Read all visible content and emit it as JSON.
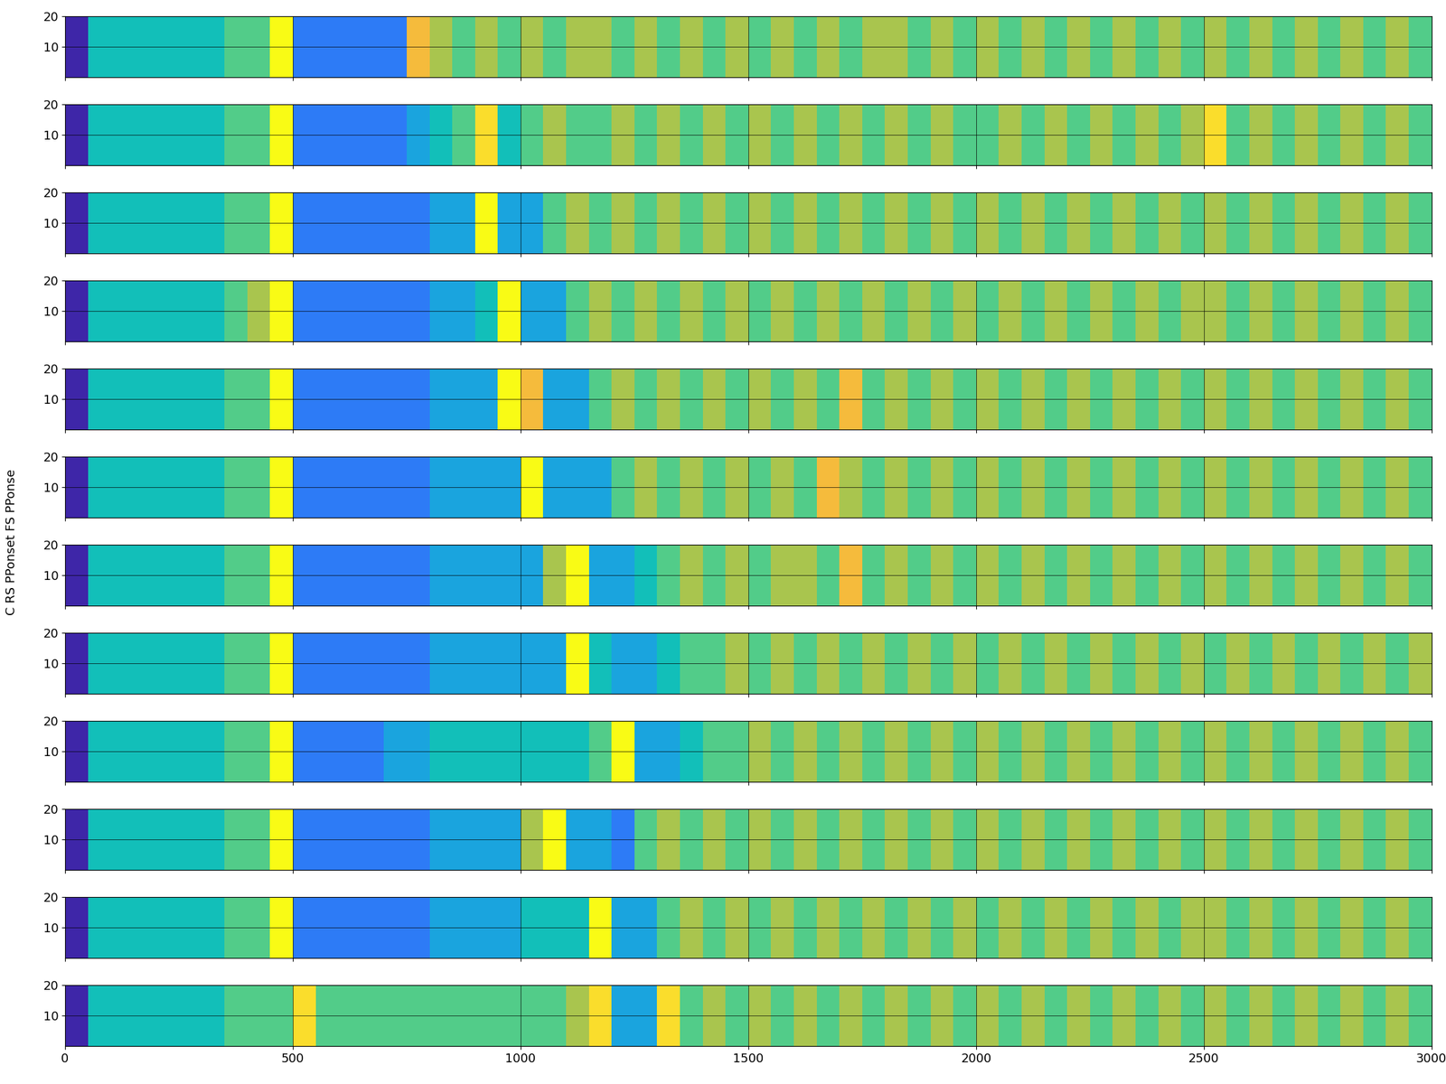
{
  "ylabel": "C RS PPonset FS PPonse",
  "chart_data": [
    {
      "type": "heatmap",
      "xlim": [
        0,
        3000
      ],
      "ylim": [
        0,
        20
      ],
      "xticks": [
        0,
        500,
        1000,
        1500,
        2000,
        2500,
        3000
      ],
      "yticks": [
        10,
        20
      ],
      "grid": true,
      "tick_labels": "y",
      "clim": [
        0,
        9
      ],
      "cells": [
        [
          0,
          4,
          4,
          4,
          4,
          4,
          4,
          5,
          5,
          9,
          2,
          2,
          2,
          2,
          2,
          7,
          6,
          5,
          6,
          5,
          6,
          5,
          6,
          6,
          5,
          6,
          5,
          6,
          5,
          6,
          5,
          6,
          5,
          6,
          5,
          6,
          6,
          5,
          6,
          5,
          6,
          5,
          6,
          5,
          6,
          5,
          6,
          5,
          6,
          5,
          6,
          5,
          6,
          5,
          6,
          5,
          6,
          5,
          6,
          5
        ]
      ]
    },
    {
      "type": "heatmap",
      "xlim": [
        0,
        3000
      ],
      "ylim": [
        0,
        20
      ],
      "xticks": [
        0,
        500,
        1000,
        1500,
        2000,
        2500,
        3000
      ],
      "yticks": [
        10,
        20
      ],
      "grid": true,
      "tick_labels": "y",
      "clim": [
        0,
        9
      ],
      "cells": [
        [
          0,
          4,
          4,
          4,
          4,
          4,
          4,
          5,
          5,
          9,
          2,
          2,
          2,
          2,
          2,
          3,
          4,
          5,
          8,
          4,
          5,
          6,
          5,
          5,
          6,
          5,
          6,
          5,
          6,
          5,
          6,
          5,
          6,
          5,
          6,
          5,
          6,
          5,
          6,
          5,
          5,
          6,
          5,
          6,
          5,
          6,
          5,
          6,
          5,
          6,
          8,
          5,
          6,
          5,
          6,
          5,
          6,
          5,
          6,
          5
        ]
      ]
    },
    {
      "type": "heatmap",
      "xlim": [
        0,
        3000
      ],
      "ylim": [
        0,
        20
      ],
      "xticks": [
        0,
        500,
        1000,
        1500,
        2000,
        2500,
        3000
      ],
      "yticks": [
        10,
        20
      ],
      "grid": true,
      "tick_labels": "y",
      "clim": [
        0,
        9
      ],
      "cells": [
        [
          0,
          4,
          4,
          4,
          4,
          4,
          4,
          5,
          5,
          9,
          2,
          2,
          2,
          2,
          2,
          2,
          3,
          3,
          9,
          3,
          3,
          5,
          6,
          5,
          6,
          5,
          6,
          5,
          6,
          5,
          6,
          5,
          6,
          5,
          6,
          5,
          6,
          5,
          6,
          5,
          6,
          5,
          6,
          5,
          6,
          5,
          6,
          5,
          6,
          5,
          6,
          5,
          6,
          5,
          6,
          5,
          6,
          5,
          6,
          5
        ]
      ]
    },
    {
      "type": "heatmap",
      "xlim": [
        0,
        3000
      ],
      "ylim": [
        0,
        20
      ],
      "xticks": [
        0,
        500,
        1000,
        1500,
        2000,
        2500,
        3000
      ],
      "yticks": [
        10,
        20
      ],
      "grid": true,
      "tick_labels": "y",
      "clim": [
        0,
        9
      ],
      "cells": [
        [
          0,
          4,
          4,
          4,
          4,
          4,
          4,
          5,
          6,
          9,
          2,
          2,
          2,
          2,
          2,
          2,
          3,
          3,
          4,
          9,
          3,
          3,
          5,
          6,
          5,
          6,
          5,
          6,
          5,
          6,
          5,
          6,
          5,
          6,
          5,
          6,
          5,
          6,
          5,
          6,
          5,
          6,
          5,
          6,
          5,
          6,
          5,
          6,
          5,
          6,
          6,
          5,
          6,
          5,
          6,
          5,
          6,
          5,
          6,
          5
        ]
      ]
    },
    {
      "type": "heatmap",
      "xlim": [
        0,
        3000
      ],
      "ylim": [
        0,
        20
      ],
      "xticks": [
        0,
        500,
        1000,
        1500,
        2000,
        2500,
        3000
      ],
      "yticks": [
        10,
        20
      ],
      "grid": true,
      "tick_labels": "y",
      "clim": [
        0,
        9
      ],
      "cells": [
        [
          0,
          4,
          4,
          4,
          4,
          4,
          4,
          5,
          5,
          9,
          2,
          2,
          2,
          2,
          2,
          2,
          3,
          3,
          3,
          9,
          7,
          3,
          3,
          5,
          6,
          5,
          6,
          5,
          6,
          5,
          6,
          5,
          6,
          5,
          7,
          5,
          6,
          5,
          6,
          5,
          6,
          5,
          6,
          5,
          6,
          5,
          6,
          5,
          6,
          5,
          6,
          5,
          6,
          5,
          6,
          5,
          6,
          5,
          6,
          5
        ]
      ]
    },
    {
      "type": "heatmap",
      "xlim": [
        0,
        3000
      ],
      "ylim": [
        0,
        20
      ],
      "xticks": [
        0,
        500,
        1000,
        1500,
        2000,
        2500,
        3000
      ],
      "yticks": [
        10,
        20
      ],
      "grid": true,
      "tick_labels": "y",
      "clim": [
        0,
        9
      ],
      "cells": [
        [
          0,
          4,
          4,
          4,
          4,
          4,
          4,
          5,
          5,
          9,
          2,
          2,
          2,
          2,
          2,
          2,
          3,
          3,
          3,
          3,
          9,
          3,
          3,
          3,
          5,
          6,
          5,
          6,
          5,
          6,
          5,
          6,
          5,
          7,
          6,
          5,
          6,
          5,
          6,
          5,
          6,
          5,
          6,
          5,
          6,
          5,
          6,
          5,
          6,
          5,
          6,
          5,
          6,
          5,
          6,
          5,
          6,
          5,
          6,
          5
        ]
      ]
    },
    {
      "type": "heatmap",
      "xlim": [
        0,
        3000
      ],
      "ylim": [
        0,
        20
      ],
      "xticks": [
        0,
        500,
        1000,
        1500,
        2000,
        2500,
        3000
      ],
      "yticks": [
        10,
        20
      ],
      "grid": true,
      "tick_labels": "y",
      "clim": [
        0,
        9
      ],
      "cells": [
        [
          0,
          4,
          4,
          4,
          4,
          4,
          4,
          5,
          5,
          9,
          2,
          2,
          2,
          2,
          2,
          2,
          3,
          3,
          3,
          3,
          3,
          6,
          9,
          3,
          3,
          4,
          5,
          6,
          5,
          6,
          5,
          6,
          6,
          5,
          7,
          5,
          6,
          5,
          6,
          5,
          6,
          5,
          6,
          5,
          6,
          5,
          6,
          5,
          6,
          5,
          6,
          5,
          6,
          5,
          6,
          5,
          6,
          5,
          6,
          5
        ]
      ]
    },
    {
      "type": "heatmap",
      "xlim": [
        0,
        3000
      ],
      "ylim": [
        0,
        20
      ],
      "xticks": [
        0,
        500,
        1000,
        1500,
        2000,
        2500,
        3000
      ],
      "yticks": [
        10,
        20
      ],
      "grid": true,
      "tick_labels": "y",
      "clim": [
        0,
        9
      ],
      "cells": [
        [
          0,
          4,
          4,
          4,
          4,
          4,
          4,
          5,
          5,
          9,
          2,
          2,
          2,
          2,
          2,
          2,
          3,
          3,
          3,
          3,
          3,
          3,
          9,
          4,
          3,
          3,
          4,
          5,
          5,
          6,
          5,
          6,
          5,
          6,
          5,
          6,
          5,
          6,
          5,
          6,
          5,
          6,
          5,
          6,
          5,
          6,
          5,
          6,
          5,
          6,
          5,
          6,
          5,
          6,
          5,
          6,
          5,
          6,
          5,
          6
        ]
      ]
    },
    {
      "type": "heatmap",
      "xlim": [
        0,
        3000
      ],
      "ylim": [
        0,
        20
      ],
      "xticks": [
        0,
        500,
        1000,
        1500,
        2000,
        2500,
        3000
      ],
      "yticks": [
        10,
        20
      ],
      "grid": true,
      "tick_labels": "y",
      "clim": [
        0,
        9
      ],
      "cells": [
        [
          0,
          4,
          4,
          4,
          4,
          4,
          4,
          5,
          5,
          9,
          2,
          2,
          2,
          2,
          3,
          3,
          4,
          4,
          4,
          4,
          4,
          4,
          4,
          5,
          9,
          3,
          3,
          4,
          5,
          5,
          6,
          5,
          6,
          5,
          6,
          5,
          6,
          5,
          6,
          5,
          6,
          5,
          6,
          5,
          6,
          5,
          6,
          5,
          6,
          5,
          6,
          5,
          6,
          5,
          6,
          5,
          6,
          5,
          6,
          5
        ]
      ]
    },
    {
      "type": "heatmap",
      "xlim": [
        0,
        3000
      ],
      "ylim": [
        0,
        20
      ],
      "xticks": [
        0,
        500,
        1000,
        1500,
        2000,
        2500,
        3000
      ],
      "yticks": [
        10,
        20
      ],
      "grid": true,
      "tick_labels": "y",
      "clim": [
        0,
        9
      ],
      "cells": [
        [
          0,
          4,
          4,
          4,
          4,
          4,
          4,
          5,
          5,
          9,
          2,
          2,
          2,
          2,
          2,
          2,
          3,
          3,
          3,
          3,
          6,
          9,
          3,
          3,
          2,
          5,
          6,
          5,
          6,
          5,
          6,
          5,
          6,
          5,
          6,
          5,
          6,
          5,
          6,
          5,
          6,
          5,
          6,
          5,
          6,
          5,
          6,
          5,
          6,
          5,
          6,
          5,
          6,
          5,
          6,
          5,
          6,
          5,
          6,
          5
        ]
      ]
    },
    {
      "type": "heatmap",
      "xlim": [
        0,
        3000
      ],
      "ylim": [
        0,
        20
      ],
      "xticks": [
        0,
        500,
        1000,
        1500,
        2000,
        2500,
        3000
      ],
      "yticks": [
        10,
        20
      ],
      "grid": true,
      "tick_labels": "y",
      "clim": [
        0,
        9
      ],
      "cells": [
        [
          0,
          4,
          4,
          4,
          4,
          4,
          4,
          5,
          5,
          9,
          2,
          2,
          2,
          2,
          2,
          2,
          3,
          3,
          3,
          3,
          4,
          4,
          4,
          9,
          3,
          3,
          5,
          6,
          5,
          6,
          5,
          6,
          5,
          6,
          5,
          6,
          5,
          6,
          5,
          6,
          5,
          6,
          5,
          6,
          5,
          6,
          5,
          6,
          5,
          6,
          6,
          5,
          6,
          5,
          6,
          5,
          6,
          5,
          6,
          5
        ]
      ]
    },
    {
      "type": "heatmap",
      "xlim": [
        0,
        3000
      ],
      "ylim": [
        0,
        20
      ],
      "xticks": [
        0,
        500,
        1000,
        1500,
        2000,
        2500,
        3000
      ],
      "yticks": [
        10,
        20
      ],
      "grid": true,
      "tick_labels": true,
      "clim": [
        0,
        9
      ],
      "cells": [
        [
          0,
          4,
          4,
          4,
          4,
          4,
          4,
          5,
          5,
          5,
          8,
          5,
          5,
          5,
          5,
          5,
          5,
          5,
          5,
          5,
          5,
          5,
          6,
          8,
          3,
          3,
          8,
          5,
          6,
          5,
          6,
          5,
          6,
          5,
          6,
          5,
          6,
          5,
          6,
          5,
          6,
          5,
          6,
          5,
          6,
          5,
          6,
          5,
          6,
          5,
          6,
          5,
          6,
          5,
          6,
          5,
          6,
          5,
          6,
          5
        ]
      ]
    }
  ]
}
